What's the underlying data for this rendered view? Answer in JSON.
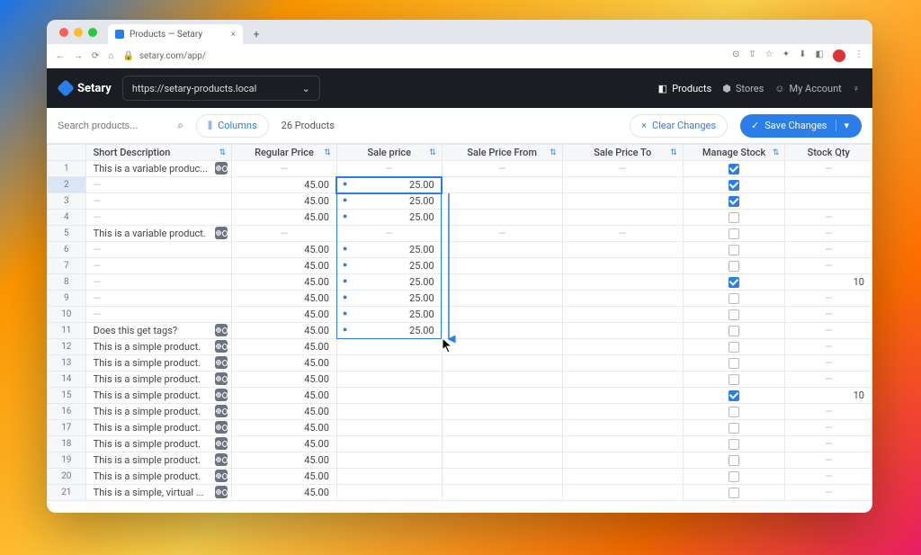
{
  "browser": {
    "tab_title": "Products — Setary",
    "url": "setary.com/app/"
  },
  "app": {
    "brand": "Setary",
    "site_url": "https://setary-products.local",
    "nav": {
      "products": "Products",
      "stores": "Stores",
      "account": "My Account"
    }
  },
  "toolbar": {
    "search_placeholder": "Search products...",
    "columns_label": "Columns",
    "count_label": "26 Products",
    "clear_label": "Clear Changes",
    "save_label": "Save Changes"
  },
  "columns": {
    "desc": "Short Description",
    "reg": "Regular Price",
    "sale": "Sale price",
    "from": "Sale Price From",
    "to": "Sale Price To",
    "ms": "Manage Stock",
    "qty": "Stock Qty"
  },
  "rows": [
    {
      "n": 1,
      "desc": "This is a variable produc...",
      "badge": true,
      "reg": "—",
      "sale": "—",
      "ms": true,
      "qty": "—",
      "dash": true
    },
    {
      "n": 2,
      "desc": "",
      "reg": "45.00",
      "sale": "25.00",
      "dirty": true,
      "ms": true,
      "qty": ""
    },
    {
      "n": 3,
      "desc": "",
      "reg": "45.00",
      "sale": "25.00",
      "dirty": true,
      "ms": true,
      "qty": ""
    },
    {
      "n": 4,
      "desc": "",
      "reg": "45.00",
      "sale": "25.00",
      "dirty": true,
      "ms": false,
      "qty": "—"
    },
    {
      "n": 5,
      "desc": "This is a variable product.",
      "badge": true,
      "reg": "—",
      "sale": "—",
      "ms": false,
      "qty": "—",
      "dash": true
    },
    {
      "n": 6,
      "desc": "",
      "reg": "45.00",
      "sale": "25.00",
      "dirty": true,
      "ms": false,
      "qty": "—"
    },
    {
      "n": 7,
      "desc": "",
      "reg": "45.00",
      "sale": "25.00",
      "dirty": true,
      "ms": false,
      "qty": "—"
    },
    {
      "n": 8,
      "desc": "",
      "reg": "45.00",
      "sale": "25.00",
      "dirty": true,
      "ms": true,
      "qty": "10"
    },
    {
      "n": 9,
      "desc": "",
      "reg": "45.00",
      "sale": "25.00",
      "dirty": true,
      "ms": false,
      "qty": "—"
    },
    {
      "n": 10,
      "desc": "",
      "reg": "45.00",
      "sale": "25.00",
      "dirty": true,
      "ms": false,
      "qty": "—"
    },
    {
      "n": 11,
      "desc": "Does this get tags?",
      "badge": true,
      "reg": "45.00",
      "sale": "25.00",
      "dirty": true,
      "ms": false,
      "qty": "—"
    },
    {
      "n": 12,
      "desc": "This is a simple product.",
      "badge": true,
      "reg": "45.00",
      "sale": "",
      "ms": false,
      "qty": "—"
    },
    {
      "n": 13,
      "desc": "This is a simple product.",
      "badge": true,
      "reg": "45.00",
      "sale": "",
      "ms": false,
      "qty": "—"
    },
    {
      "n": 14,
      "desc": "This is a simple product.",
      "badge": true,
      "reg": "45.00",
      "sale": "",
      "ms": false,
      "qty": "—"
    },
    {
      "n": 15,
      "desc": "This is a simple product.",
      "badge": true,
      "reg": "45.00",
      "sale": "",
      "ms": true,
      "qty": "10"
    },
    {
      "n": 16,
      "desc": "This is a simple product.",
      "badge": true,
      "reg": "45.00",
      "sale": "",
      "ms": false,
      "qty": "—"
    },
    {
      "n": 17,
      "desc": "This is a simple product.",
      "badge": true,
      "reg": "45.00",
      "sale": "",
      "ms": false,
      "qty": "—"
    },
    {
      "n": 18,
      "desc": "This is a simple product.",
      "badge": true,
      "reg": "45.00",
      "sale": "",
      "ms": false,
      "qty": "—"
    },
    {
      "n": 19,
      "desc": "This is a simple product.",
      "badge": true,
      "reg": "45.00",
      "sale": "",
      "ms": false,
      "qty": "—"
    },
    {
      "n": 20,
      "desc": "This is a simple product.",
      "badge": true,
      "reg": "45.00",
      "sale": "",
      "ms": false,
      "qty": "—"
    },
    {
      "n": 21,
      "desc": "This is a simple, virtual ...",
      "badge": true,
      "reg": "45.00",
      "sale": "",
      "ms": false,
      "qty": "—"
    }
  ],
  "selection": {
    "selected_row": 2,
    "selected_col": "sale",
    "drag_start_row": 2,
    "drag_end_row": 11
  },
  "colors": {
    "primary": "#2b7de9",
    "border": "#e7e9ec",
    "header_bg": "#f6f7f9"
  }
}
